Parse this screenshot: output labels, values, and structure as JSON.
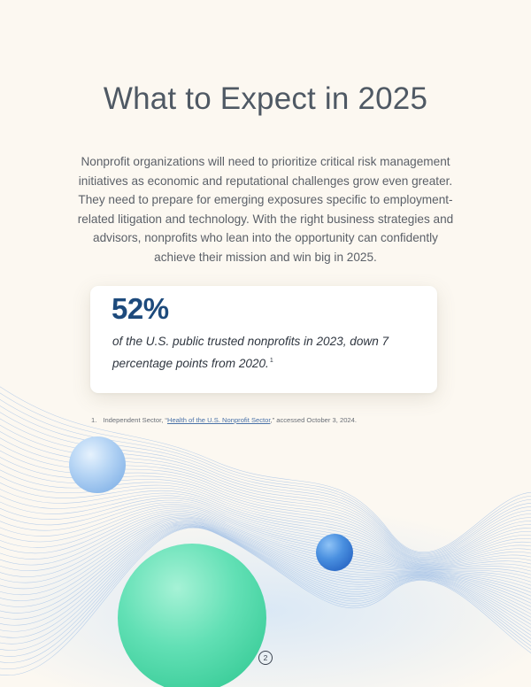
{
  "page": {
    "title": "What to Expect in 2025",
    "intro": "Nonprofit organizations will need to prioritize critical risk management initiatives as economic and reputational challenges grow even greater. They need to prepare for emerging exposures specific to employment-related litigation and technology. With the right business strategies and advisors, nonprofits who lean into the opportunity can confidently achieve their mission and win big in 2025.",
    "page_number": "2"
  },
  "stat": {
    "value": "52%",
    "caption": "of the U.S. public trusted nonprofits in 2023, down 7 percentage points from 2020.",
    "footnote_ref": "1"
  },
  "footnote": {
    "number": "1.",
    "source_prefix": "Independent Sector, “",
    "link_text": "Health of the U.S. Nonprofit Sector",
    "source_suffix": ",” accessed October 3, 2024."
  },
  "colors": {
    "background": "#fcf8f1",
    "title": "#4f5964",
    "stat_value": "#1d4a7c",
    "wave_lines": "#9bbce6",
    "sphere_light_blue": "#a9cdf2",
    "sphere_blue": "#4a90e0",
    "sphere_mint": "#5fe0b4"
  }
}
